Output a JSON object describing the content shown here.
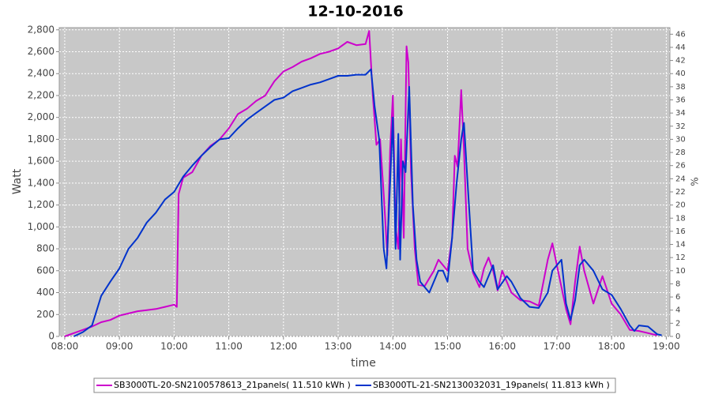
{
  "chart_data": {
    "type": "line",
    "title": "12-10-2016",
    "x_label": "time",
    "y_label": "Watt",
    "y2_label": "%",
    "xlim": [
      "07:54",
      "19:04"
    ],
    "xticks": [
      "08:00",
      "09:00",
      "10:00",
      "11:00",
      "12:00",
      "13:00",
      "14:00",
      "15:00",
      "16:00",
      "17:00",
      "18:00",
      "19:00"
    ],
    "ylim": [
      0,
      2820
    ],
    "yticks": [
      0,
      200,
      400,
      600,
      800,
      {
        "value": 1000,
        "label": "1,000"
      },
      {
        "value": 1200,
        "label": "1,200"
      },
      {
        "value": 1400,
        "label": "1,400"
      },
      {
        "value": 1600,
        "label": "1,600"
      },
      {
        "value": 1800,
        "label": "1,800"
      },
      {
        "value": 2000,
        "label": "2,000"
      },
      {
        "value": 2200,
        "label": "2,200"
      },
      {
        "value": 2400,
        "label": "2,400"
      },
      {
        "value": 2600,
        "label": "2,600"
      },
      {
        "value": 2800,
        "label": "2,800"
      }
    ],
    "y2lim": [
      0,
      47
    ],
    "y2ticks": [
      0,
      2,
      4,
      6,
      8,
      10,
      12,
      14,
      16,
      18,
      20,
      22,
      24,
      26,
      28,
      30,
      32,
      34,
      36,
      38,
      40,
      42,
      44,
      46
    ],
    "grid": true,
    "series": [
      {
        "name": "SB3000TL-20-SN2100578613_21panels( 11.510 kWh )",
        "color": "#cc00cc",
        "x": [
          "08:00",
          "08:10",
          "08:20",
          "08:30",
          "08:40",
          "08:50",
          "09:00",
          "09:10",
          "09:20",
          "09:30",
          "09:40",
          "09:50",
          "10:00",
          "10:03",
          "10:05",
          "10:10",
          "10:20",
          "10:30",
          "10:40",
          "10:50",
          "11:00",
          "11:10",
          "11:20",
          "11:30",
          "11:40",
          "11:50",
          "12:00",
          "12:10",
          "12:20",
          "12:30",
          "12:40",
          "12:50",
          "13:00",
          "13:10",
          "13:20",
          "13:30",
          "13:34",
          "13:38",
          "13:42",
          "13:46",
          "13:50",
          "13:54",
          "13:57",
          "14:00",
          "14:03",
          "14:06",
          "14:09",
          "14:12",
          "14:15",
          "14:17",
          "14:20",
          "14:24",
          "14:28",
          "14:35",
          "14:45",
          "14:50",
          "15:00",
          "15:05",
          "15:08",
          "15:11",
          "15:15",
          "15:18",
          "15:22",
          "15:28",
          "15:35",
          "15:40",
          "15:45",
          "15:50",
          "15:55",
          "16:00",
          "16:05",
          "16:10",
          "16:20",
          "16:30",
          "16:40",
          "16:50",
          "16:55",
          "17:00",
          "17:10",
          "17:15",
          "17:20",
          "17:25",
          "17:30",
          "17:40",
          "17:50",
          "18:00",
          "18:10",
          "18:20",
          "18:30",
          "18:40",
          "18:50"
        ],
        "values": [
          0,
          30,
          60,
          90,
          130,
          150,
          190,
          210,
          230,
          240,
          250,
          270,
          290,
          270,
          1300,
          1450,
          1500,
          1650,
          1740,
          1800,
          1900,
          2030,
          2080,
          2150,
          2200,
          2330,
          2420,
          2460,
          2510,
          2540,
          2580,
          2600,
          2630,
          2690,
          2660,
          2670,
          2790,
          2200,
          1750,
          1800,
          1300,
          740,
          1700,
          2200,
          1000,
          800,
          1800,
          900,
          2650,
          2500,
          1500,
          800,
          470,
          460,
          600,
          700,
          600,
          900,
          1650,
          1550,
          2250,
          1700,
          800,
          580,
          450,
          620,
          720,
          600,
          420,
          600,
          500,
          400,
          330,
          320,
          280,
          700,
          850,
          650,
          250,
          110,
          500,
          820,
          600,
          300,
          550,
          300,
          200,
          60,
          50,
          30,
          10
        ]
      },
      {
        "name": "SB3000TL-21-SN2130032031_19panels( 11.813 kWh )",
        "color": "#0033cc",
        "x": [
          "08:10",
          "08:20",
          "08:30",
          "08:40",
          "08:50",
          "09:00",
          "09:10",
          "09:20",
          "09:30",
          "09:40",
          "09:50",
          "10:00",
          "10:10",
          "10:20",
          "10:30",
          "10:40",
          "10:50",
          "11:00",
          "11:10",
          "11:20",
          "11:30",
          "11:40",
          "11:50",
          "12:00",
          "12:10",
          "12:20",
          "12:30",
          "12:40",
          "12:50",
          "13:00",
          "13:10",
          "13:20",
          "13:30",
          "13:36",
          "13:40",
          "13:45",
          "13:50",
          "13:53",
          "13:57",
          "14:00",
          "14:03",
          "14:06",
          "14:08",
          "14:11",
          "14:14",
          "14:18",
          "14:22",
          "14:26",
          "14:30",
          "14:35",
          "14:40",
          "14:50",
          "14:55",
          "15:00",
          "15:05",
          "15:10",
          "15:15",
          "15:18",
          "15:22",
          "15:28",
          "15:35",
          "15:40",
          "15:50",
          "15:55",
          "16:05",
          "16:10",
          "16:20",
          "16:30",
          "16:40",
          "16:50",
          "16:55",
          "17:05",
          "17:10",
          "17:15",
          "17:20",
          "17:25",
          "17:30",
          "17:40",
          "17:50",
          "18:00",
          "18:10",
          "18:20",
          "18:25",
          "18:30",
          "18:40",
          "18:50",
          "18:55"
        ],
        "values": [
          0,
          40,
          100,
          370,
          500,
          620,
          800,
          900,
          1040,
          1130,
          1250,
          1320,
          1460,
          1560,
          1650,
          1730,
          1800,
          1810,
          1900,
          1980,
          2040,
          2100,
          2160,
          2180,
          2240,
          2270,
          2300,
          2320,
          2350,
          2380,
          2380,
          2390,
          2390,
          2440,
          2100,
          1800,
          800,
          620,
          1400,
          2000,
          800,
          1850,
          700,
          1600,
          1500,
          2280,
          1200,
          700,
          500,
          450,
          400,
          600,
          600,
          500,
          900,
          1400,
          1800,
          1950,
          1400,
          600,
          500,
          450,
          650,
          430,
          550,
          500,
          350,
          270,
          260,
          400,
          600,
          700,
          300,
          150,
          330,
          650,
          700,
          600,
          430,
          380,
          250,
          100,
          50,
          100,
          90,
          20,
          10
        ]
      }
    ]
  }
}
